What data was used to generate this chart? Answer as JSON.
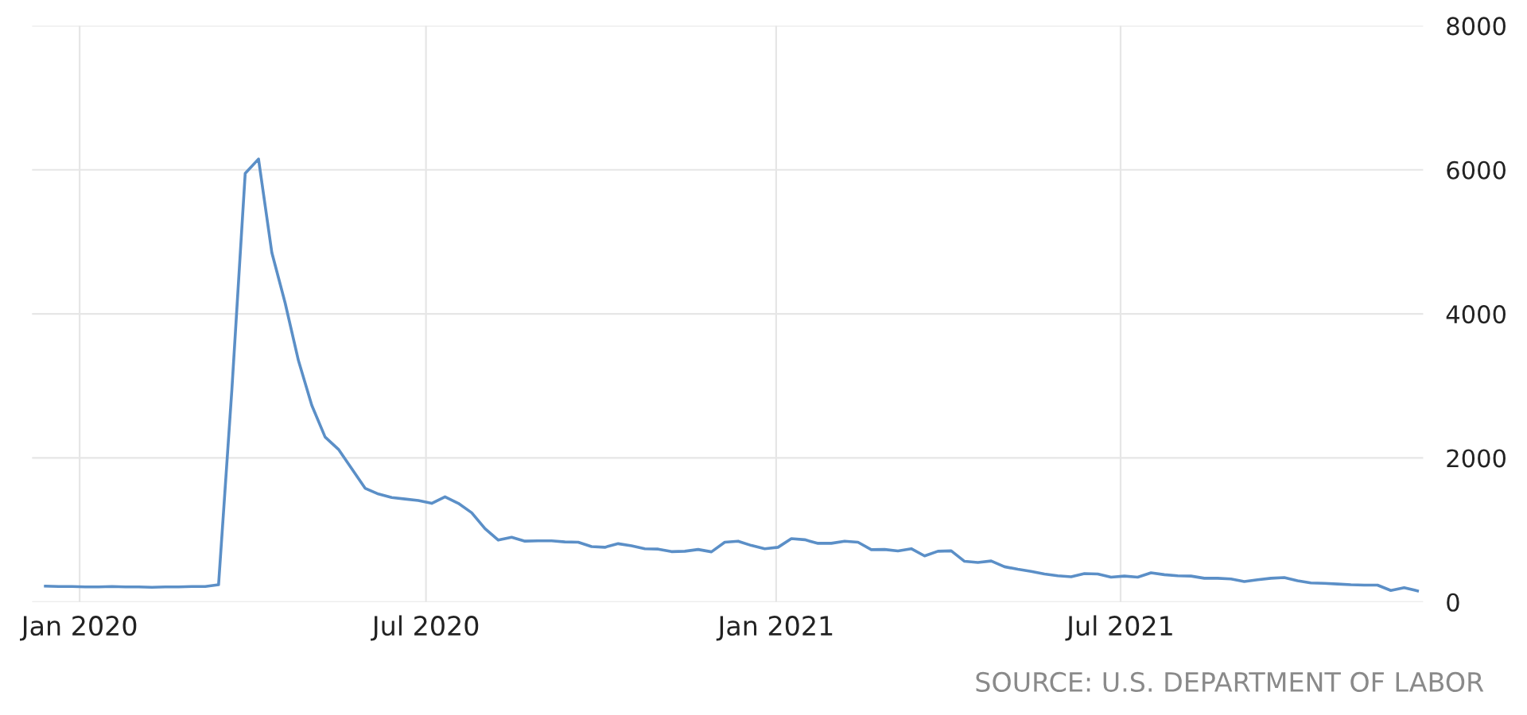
{
  "chart_data": {
    "type": "line",
    "x": [
      "2019-12-14",
      "2019-12-21",
      "2019-12-28",
      "2020-01-04",
      "2020-01-11",
      "2020-01-18",
      "2020-01-25",
      "2020-02-01",
      "2020-02-08",
      "2020-02-15",
      "2020-02-22",
      "2020-02-29",
      "2020-03-07",
      "2020-03-14",
      "2020-03-21",
      "2020-03-28",
      "2020-04-04",
      "2020-04-11",
      "2020-04-18",
      "2020-04-25",
      "2020-05-02",
      "2020-05-09",
      "2020-05-16",
      "2020-05-23",
      "2020-05-30",
      "2020-06-06",
      "2020-06-13",
      "2020-06-20",
      "2020-06-27",
      "2020-07-04",
      "2020-07-11",
      "2020-07-18",
      "2020-07-25",
      "2020-08-01",
      "2020-08-08",
      "2020-08-15",
      "2020-08-22",
      "2020-08-29",
      "2020-09-05",
      "2020-09-12",
      "2020-09-19",
      "2020-09-26",
      "2020-10-03",
      "2020-10-10",
      "2020-10-17",
      "2020-10-24",
      "2020-10-31",
      "2020-11-07",
      "2020-11-14",
      "2020-11-21",
      "2020-11-28",
      "2020-12-05",
      "2020-12-12",
      "2020-12-19",
      "2020-12-26",
      "2021-01-02",
      "2021-01-09",
      "2021-01-16",
      "2021-01-23",
      "2021-01-30",
      "2021-02-06",
      "2021-02-13",
      "2021-02-20",
      "2021-02-27",
      "2021-03-06",
      "2021-03-13",
      "2021-03-20",
      "2021-03-27",
      "2021-04-03",
      "2021-04-10",
      "2021-04-17",
      "2021-04-24",
      "2021-05-01",
      "2021-05-08",
      "2021-05-15",
      "2021-05-22",
      "2021-05-29",
      "2021-06-05",
      "2021-06-12",
      "2021-06-19",
      "2021-06-26",
      "2021-07-03",
      "2021-07-10",
      "2021-07-17",
      "2021-07-24",
      "2021-07-31",
      "2021-08-07",
      "2021-08-14",
      "2021-08-21",
      "2021-08-28",
      "2021-09-04",
      "2021-09-11",
      "2021-09-18",
      "2021-09-25",
      "2021-10-02",
      "2021-10-09",
      "2021-10-16",
      "2021-10-23",
      "2021-10-30",
      "2021-11-06",
      "2021-11-13",
      "2021-11-20",
      "2021-11-27",
      "2021-12-04"
    ],
    "series": [
      {
        "color": "#5b8fc7",
        "values": [
          220,
          215,
          215,
          210,
          210,
          215,
          210,
          210,
          205,
          210,
          210,
          215,
          215,
          240,
          2950,
          5950,
          6150,
          4850,
          4150,
          3350,
          2730,
          2290,
          2120,
          1850,
          1580,
          1500,
          1450,
          1430,
          1410,
          1370,
          1460,
          1370,
          1240,
          1020,
          860,
          900,
          845,
          850,
          850,
          835,
          830,
          770,
          760,
          810,
          780,
          740,
          735,
          700,
          705,
          730,
          697,
          830,
          845,
          785,
          740,
          760,
          880,
          865,
          815,
          815,
          845,
          830,
          727,
          730,
          710,
          740,
          640,
          705,
          710,
          565,
          550,
          570,
          490,
          455,
          425,
          390,
          365,
          350,
          395,
          390,
          345,
          360,
          345,
          405,
          380,
          365,
          360,
          330,
          330,
          320,
          285,
          310,
          330,
          340,
          295,
          265,
          260,
          250,
          240,
          235,
          235,
          160,
          200,
          155
        ]
      }
    ],
    "xlim": [
      "2019-12-07",
      "2021-12-07"
    ],
    "xticks": [
      {
        "value": "2020-01-01",
        "label": "Jan 2020"
      },
      {
        "value": "2020-07-01",
        "label": "Jul 2020"
      },
      {
        "value": "2021-01-01",
        "label": "Jan 2021"
      },
      {
        "value": "2021-07-01",
        "label": "Jul 2021"
      }
    ],
    "ylim": [
      0,
      8000
    ],
    "yticks": [
      0,
      2000,
      4000,
      6000,
      8000
    ],
    "grid": true,
    "annotations": [
      "SOURCE: U.S. DEPARTMENT OF LABOR"
    ]
  }
}
